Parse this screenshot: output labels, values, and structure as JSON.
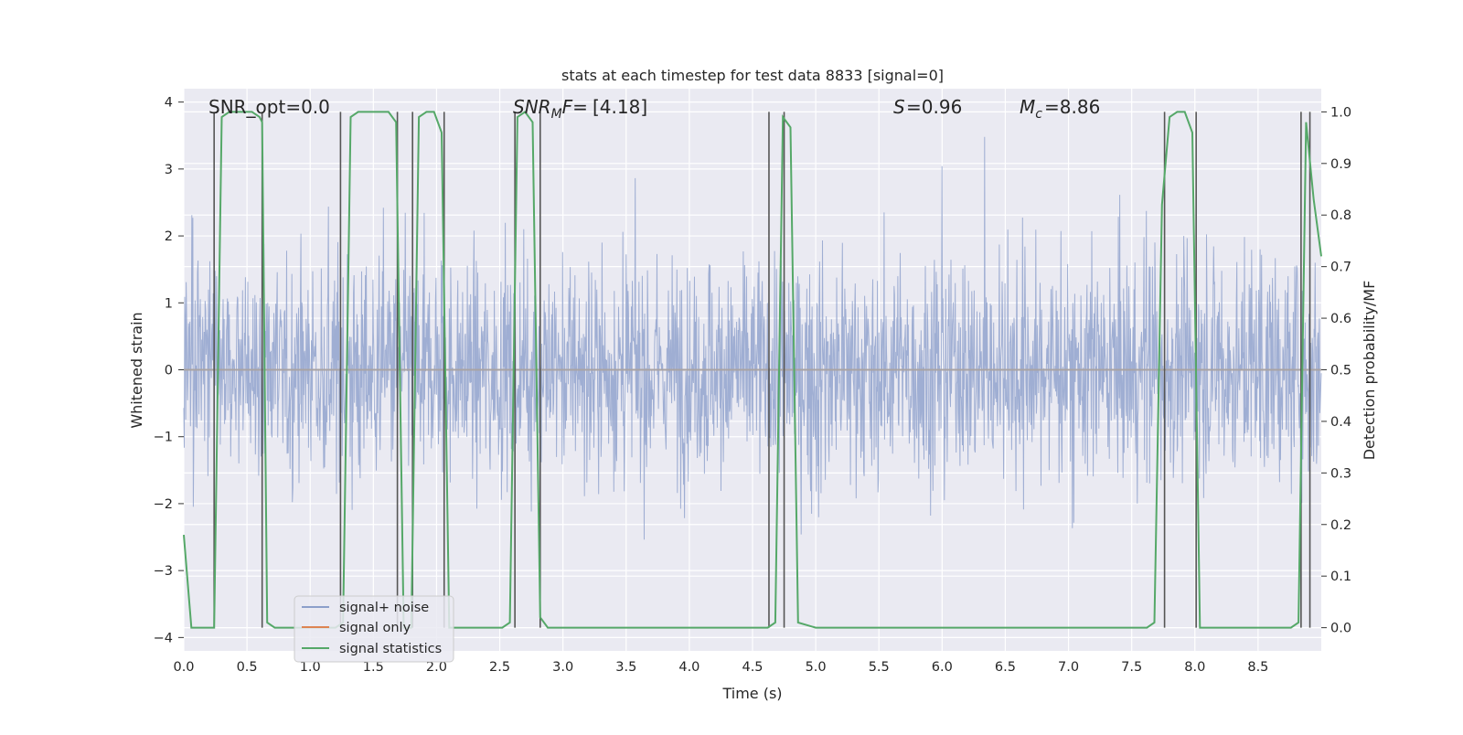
{
  "chart_data": {
    "type": "line",
    "title": "stats at each timestep for test data 8833 [signal=0]",
    "xlabel": "Time (s)",
    "ylabel": "Whitened strain",
    "y2label": "Detection probability/MF",
    "xlim": [
      0.0,
      9.0
    ],
    "ylim": [
      -4.2,
      4.2
    ],
    "y2lim": [
      -0.045,
      1.045
    ],
    "xticks": [
      "0.0",
      "0.5",
      "1.0",
      "1.5",
      "2.0",
      "2.5",
      "3.0",
      "3.5",
      "4.0",
      "4.5",
      "5.0",
      "5.5",
      "6.0",
      "6.5",
      "7.0",
      "7.5",
      "8.0",
      "8.5"
    ],
    "yticks": [
      "−4",
      "−3",
      "−2",
      "−1",
      "0",
      "1",
      "2",
      "3",
      "4"
    ],
    "y2ticks": [
      "0.0",
      "0.1",
      "0.2",
      "0.3",
      "0.4",
      "0.5",
      "0.6",
      "0.7",
      "0.8",
      "0.9",
      "1.0"
    ],
    "grid": true,
    "legend_position": "lower-left",
    "annotations": {
      "snr_opt": "SNR_opt=0.0",
      "snr_mf": "[4.18]",
      "s_label": "=0.96",
      "mc_label": "=8.86"
    },
    "series": [
      {
        "name": "signal+ noise",
        "color": "#8c9fca",
        "kind": "noise",
        "y_range": [
          -3.6,
          3.6
        ]
      },
      {
        "name": "signal only",
        "color": "#dd8452",
        "values_constant": 0.0
      },
      {
        "name": "signal statistics",
        "color": "#55a868",
        "axis": "right",
        "x": [
          0.0,
          0.06,
          0.12,
          0.18,
          0.24,
          0.3,
          0.36,
          0.42,
          0.48,
          0.54,
          0.6,
          0.62,
          0.66,
          0.72,
          0.78,
          0.84,
          0.9,
          0.96,
          1.02,
          1.08,
          1.14,
          1.2,
          1.26,
          1.32,
          1.38,
          1.44,
          1.5,
          1.56,
          1.62,
          1.68,
          1.74,
          1.8,
          1.86,
          1.92,
          1.98,
          2.04,
          2.1,
          2.16,
          2.22,
          2.28,
          2.34,
          2.4,
          2.46,
          2.52,
          2.58,
          2.64,
          2.7,
          2.76,
          2.82,
          2.88,
          2.94,
          3.0,
          4.0,
          4.5,
          4.56,
          4.62,
          4.68,
          4.74,
          4.8,
          4.86,
          5.0,
          6.0,
          7.0,
          7.62,
          7.68,
          7.74,
          7.8,
          7.86,
          7.92,
          7.98,
          8.04,
          8.1,
          8.7,
          8.76,
          8.82,
          8.88,
          8.94,
          9.0
        ],
        "y": [
          0.18,
          0.0,
          0.0,
          0.0,
          0.0,
          0.99,
          1.0,
          1.0,
          1.0,
          1.0,
          0.99,
          0.98,
          0.01,
          0.0,
          0.0,
          0.0,
          0.0,
          0.0,
          0.0,
          0.0,
          0.0,
          0.0,
          0.01,
          0.99,
          1.0,
          1.0,
          1.0,
          1.0,
          1.0,
          0.98,
          0.0,
          0.0,
          0.99,
          1.0,
          1.0,
          0.96,
          0.0,
          0.0,
          0.0,
          0.0,
          0.0,
          0.0,
          0.0,
          0.0,
          0.01,
          0.99,
          1.0,
          0.98,
          0.02,
          0.0,
          0.0,
          0.0,
          0.0,
          0.0,
          0.0,
          0.0,
          0.01,
          0.99,
          0.97,
          0.01,
          0.0,
          0.0,
          0.0,
          0.0,
          0.01,
          0.82,
          0.99,
          1.0,
          1.0,
          0.96,
          0.0,
          0.0,
          0.0,
          0.0,
          0.01,
          0.98,
          0.83,
          0.72
        ]
      },
      {
        "name": "trigger markers",
        "color": "#555555",
        "kind": "vlines",
        "x": [
          0.24,
          0.62,
          1.24,
          1.69,
          1.81,
          2.06,
          2.62,
          2.82,
          4.63,
          4.75,
          7.76,
          8.01,
          8.84,
          8.91
        ]
      }
    ]
  },
  "legend": {
    "items": [
      {
        "label": "signal+ noise",
        "color": "#8c9fca"
      },
      {
        "label": "signal only",
        "color": "#dd8452"
      },
      {
        "label": "signal statistics",
        "color": "#55a868"
      }
    ]
  }
}
